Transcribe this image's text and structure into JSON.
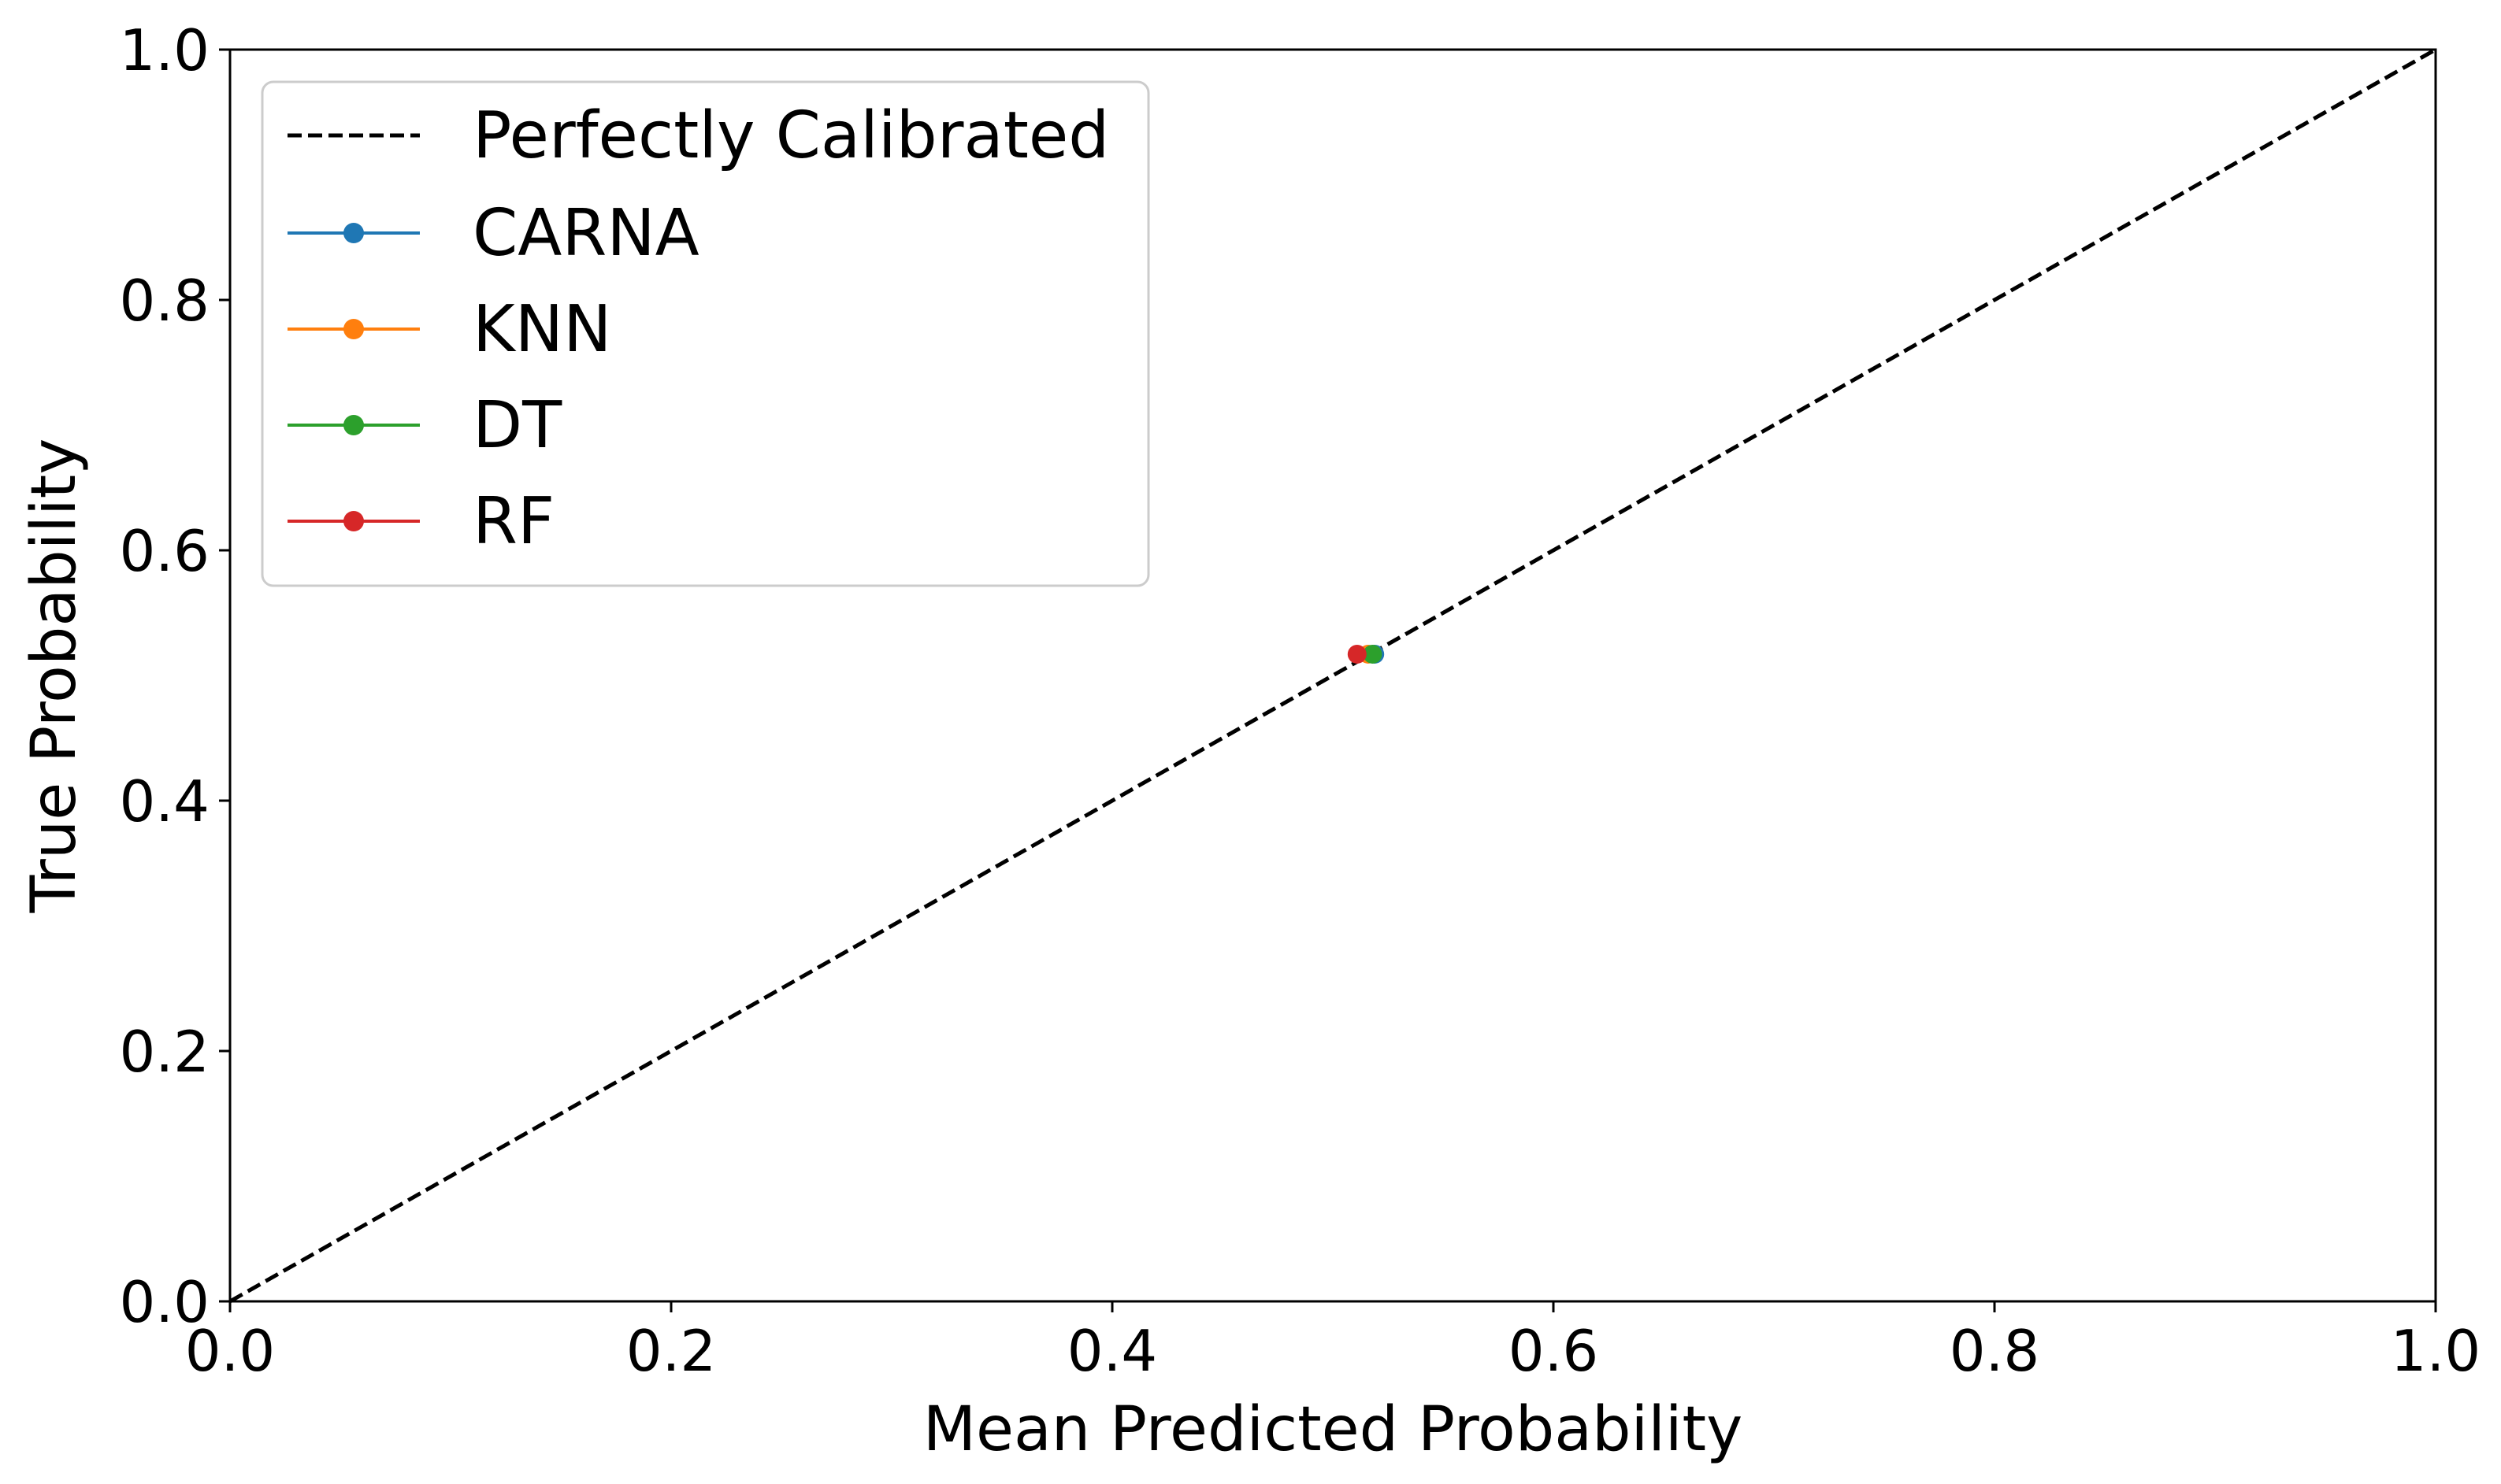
{
  "chart_data": {
    "type": "line",
    "title": "",
    "xlabel": "Mean Predicted Probability",
    "ylabel": "True Probability",
    "xlim": [
      0.0,
      1.0
    ],
    "ylim": [
      0.0,
      1.0
    ],
    "xticks": [
      "0.0",
      "0.2",
      "0.4",
      "0.6",
      "0.8",
      "1.0"
    ],
    "yticks": [
      "0.0",
      "0.2",
      "0.4",
      "0.6",
      "0.8",
      "1.0"
    ],
    "grid": false,
    "legend_position": "upper-left",
    "reference_line": {
      "name": "Perfectly Calibrated",
      "x": [
        0.0,
        1.0
      ],
      "y": [
        0.0,
        1.0
      ],
      "style": "dashed",
      "color": "#000000"
    },
    "series": [
      {
        "name": "CARNA",
        "color": "#1f77b4",
        "x": [
          0.519
        ],
        "y": [
          0.517
        ]
      },
      {
        "name": "KNN",
        "color": "#ff7f0e",
        "x": [
          0.516
        ],
        "y": [
          0.517
        ]
      },
      {
        "name": "DT",
        "color": "#2ca02c",
        "x": [
          0.518
        ],
        "y": [
          0.517
        ]
      },
      {
        "name": "RF",
        "color": "#d62728",
        "x": [
          0.511
        ],
        "y": [
          0.517
        ]
      }
    ]
  }
}
